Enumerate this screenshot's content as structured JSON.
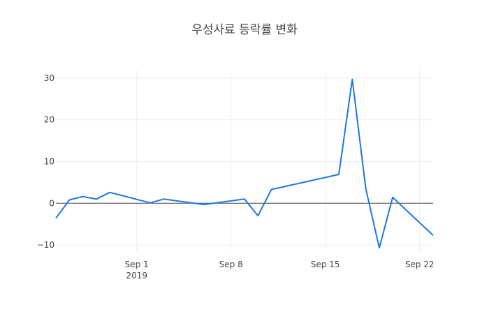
{
  "chart_data": {
    "type": "line",
    "title": "우성사료 등락률 변화",
    "xlabel": "",
    "ylabel": "",
    "x_ticks": [
      {
        "date": "2019-09-01",
        "label": "Sep 1",
        "sublabel": "2019"
      },
      {
        "date": "2019-09-08",
        "label": "Sep 8",
        "sublabel": ""
      },
      {
        "date": "2019-09-15",
        "label": "Sep 15",
        "sublabel": ""
      },
      {
        "date": "2019-09-22",
        "label": "Sep 22",
        "sublabel": ""
      }
    ],
    "y_ticks": [
      {
        "value": 30,
        "label": "30"
      },
      {
        "value": 20,
        "label": "20"
      },
      {
        "value": 10,
        "label": "10"
      },
      {
        "value": 0,
        "label": "0"
      },
      {
        "value": -10,
        "label": "−10"
      }
    ],
    "xlim": [
      "2019-08-26",
      "2019-09-23"
    ],
    "ylim": [
      -11.5,
      32
    ],
    "grid": true,
    "series": [
      {
        "color": "#1f77e0",
        "x": [
          "2019-08-26",
          "2019-08-27",
          "2019-08-28",
          "2019-08-29",
          "2019-08-30",
          "2019-09-02",
          "2019-09-03",
          "2019-09-06",
          "2019-09-09",
          "2019-09-10",
          "2019-09-11",
          "2019-09-16",
          "2019-09-17",
          "2019-09-18",
          "2019-09-19",
          "2019-09-20",
          "2019-09-23"
        ],
        "y": [
          -3.6,
          0.8,
          1.6,
          1.0,
          2.6,
          0.1,
          1.0,
          -0.3,
          1.0,
          -3.0,
          3.3,
          6.9,
          29.7,
          3.5,
          -10.7,
          1.4,
          -7.7
        ]
      }
    ]
  }
}
